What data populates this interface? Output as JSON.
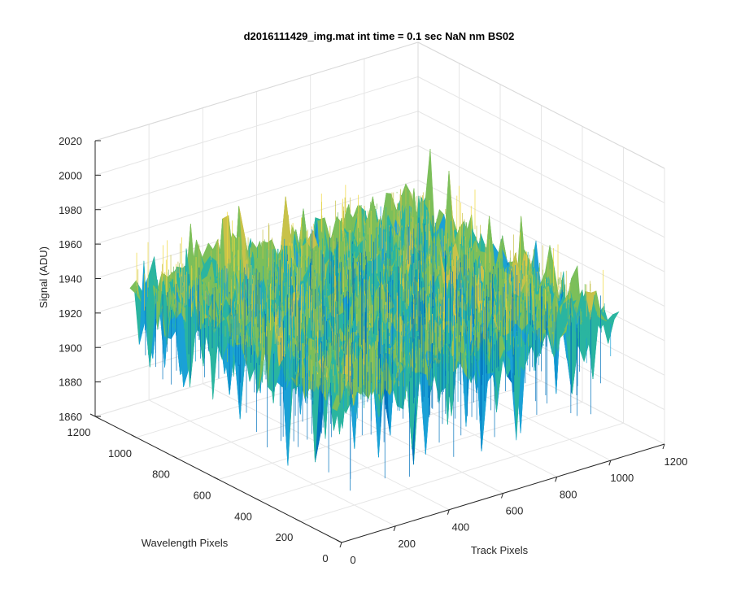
{
  "chart_data": {
    "type": "surface",
    "title": "d2016111429_img.mat int time = 0.1 sec  NaN nm BS02",
    "xlabel": "Track Pixels",
    "ylabel": "Wavelength Pixels",
    "zlabel": "Signal (ADU)",
    "xlim": [
      0,
      1200
    ],
    "ylim": [
      0,
      1200
    ],
    "zlim": [
      1860,
      2020
    ],
    "x_ticks": [
      "0",
      "200",
      "400",
      "600",
      "800",
      "1000",
      "1200"
    ],
    "y_ticks": [
      "0",
      "200",
      "400",
      "600",
      "800",
      "1000",
      "1200"
    ],
    "z_ticks": [
      "1860",
      "1880",
      "1900",
      "1920",
      "1940",
      "1960",
      "1980",
      "2000",
      "2020"
    ],
    "x_range": [
      0,
      1030
    ],
    "y_range": [
      0,
      1030
    ],
    "signal_mean": 1942,
    "signal_range": [
      1870,
      1985
    ],
    "grid": true,
    "colormap": [
      "#0072bd",
      "#1aa1d6",
      "#2ab5a0",
      "#7cbf5a",
      "#c8c24a",
      "#f0d83c"
    ]
  }
}
